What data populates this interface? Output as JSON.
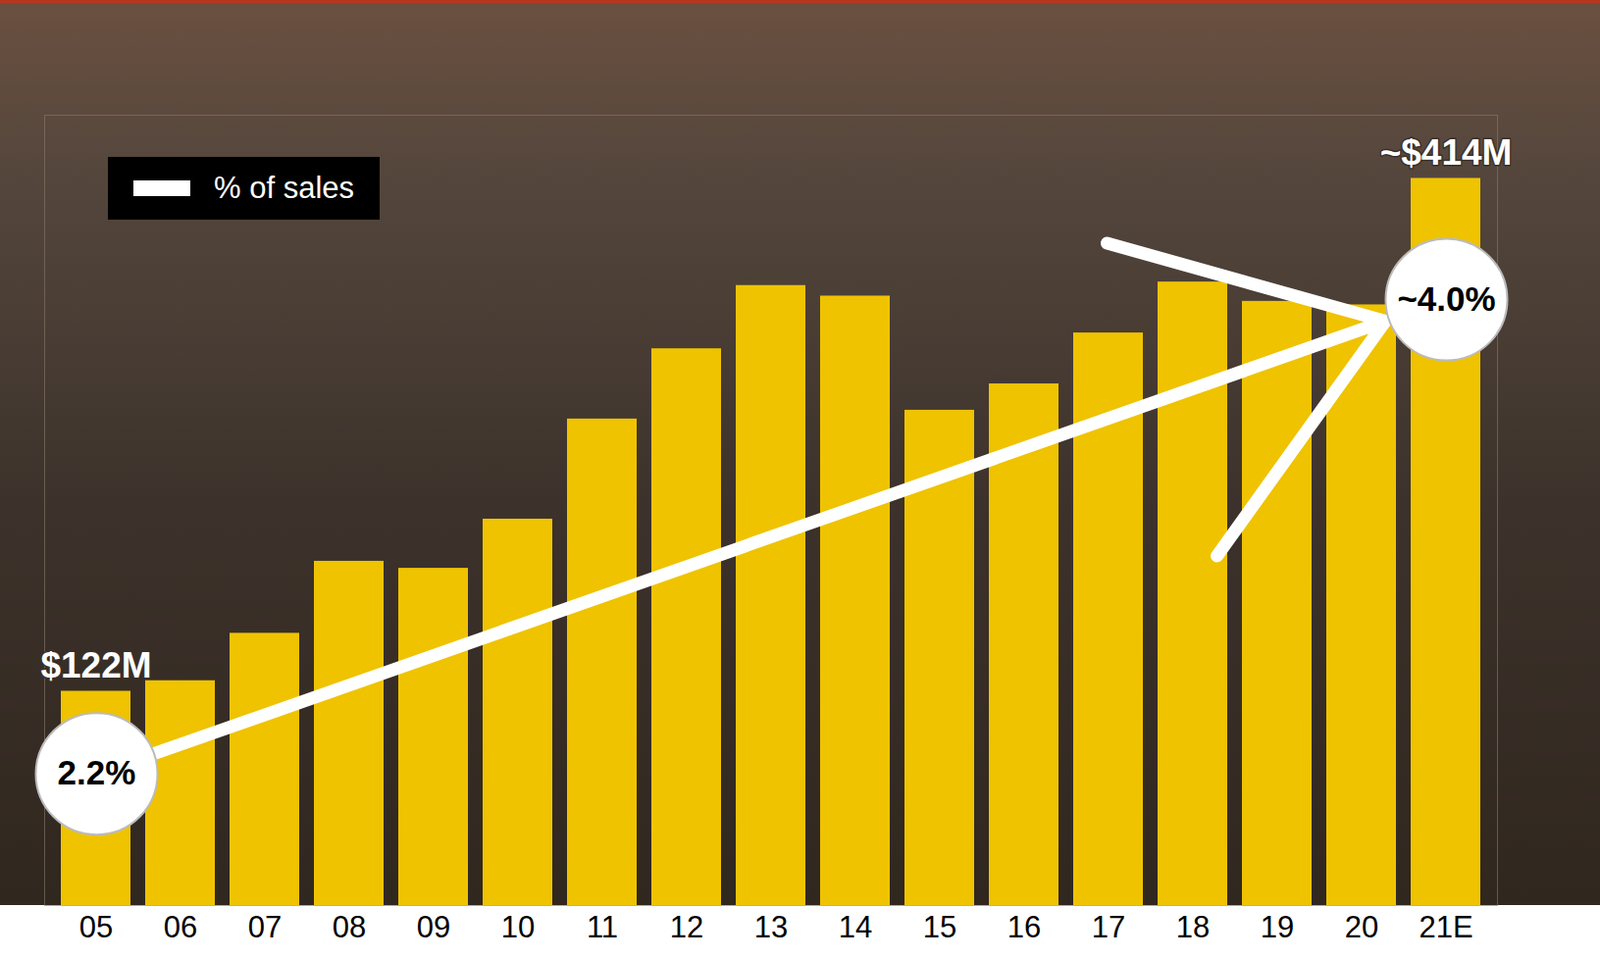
{
  "chart_data": {
    "type": "bar",
    "categories": [
      "05",
      "06",
      "07",
      "08",
      "09",
      "10",
      "11",
      "12",
      "13",
      "14",
      "15",
      "16",
      "17",
      "18",
      "19",
      "20",
      "21E"
    ],
    "values": [
      122,
      128,
      155,
      196,
      192,
      220,
      277,
      317,
      353,
      347,
      282,
      297,
      326,
      355,
      344,
      342,
      414
    ],
    "value_labels": [
      "$122M",
      null,
      null,
      null,
      null,
      null,
      null,
      null,
      null,
      null,
      null,
      null,
      null,
      null,
      null,
      null,
      "~$414M"
    ],
    "color": "#efc300",
    "ylim": [
      0,
      450
    ],
    "y2lim": [
      1.7,
      4.7
    ],
    "tick_labels": "x",
    "legend": "upper left",
    "series": [
      {
        "name": "% of sales",
        "type": "line",
        "axis": "y2",
        "color": "#ffffff",
        "marker": "circle",
        "line_style": "arrow",
        "values": [
          2.2,
          null,
          null,
          null,
          null,
          null,
          null,
          null,
          null,
          null,
          null,
          null,
          null,
          null,
          null,
          null,
          4.0
        ],
        "value_labels": [
          "2.2%",
          null,
          null,
          null,
          null,
          null,
          null,
          null,
          null,
          null,
          null,
          null,
          null,
          null,
          null,
          null,
          "~4.0%"
        ]
      }
    ]
  }
}
